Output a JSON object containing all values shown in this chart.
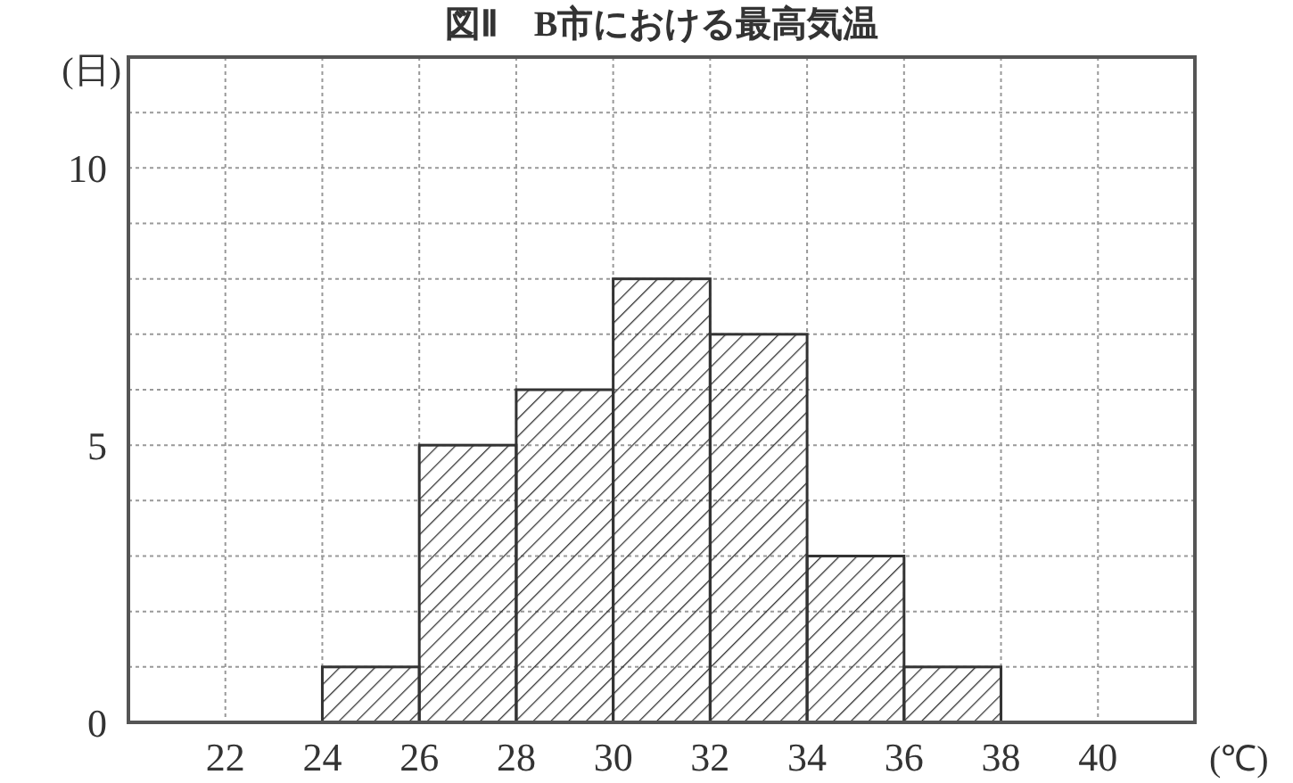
{
  "chart_data": {
    "type": "histogram",
    "title": "図Ⅱ　B市における最高気温",
    "ylabel": "(日)",
    "xlabel": "(℃)",
    "bins": [
      24,
      26,
      28,
      30,
      32,
      34,
      36,
      38
    ],
    "values": [
      1,
      5,
      6,
      8,
      7,
      3,
      1
    ],
    "color": "#333333",
    "xlim": [
      20,
      42
    ],
    "xticks": [
      22,
      24,
      26,
      28,
      30,
      32,
      34,
      36,
      38,
      40
    ],
    "ylim": [
      0,
      12
    ],
    "yticks": [
      0,
      {
        "value": 1,
        "label": null
      },
      {
        "value": 2,
        "label": null
      },
      {
        "value": 3,
        "label": null
      },
      {
        "value": 4,
        "label": null
      },
      5,
      {
        "value": 6,
        "label": null
      },
      {
        "value": 7,
        "label": null
      },
      {
        "value": 8,
        "label": null
      },
      {
        "value": 9,
        "label": null
      },
      10,
      {
        "value": 11,
        "label": null
      },
      {
        "value": 12,
        "label": null
      }
    ],
    "grid": true
  }
}
